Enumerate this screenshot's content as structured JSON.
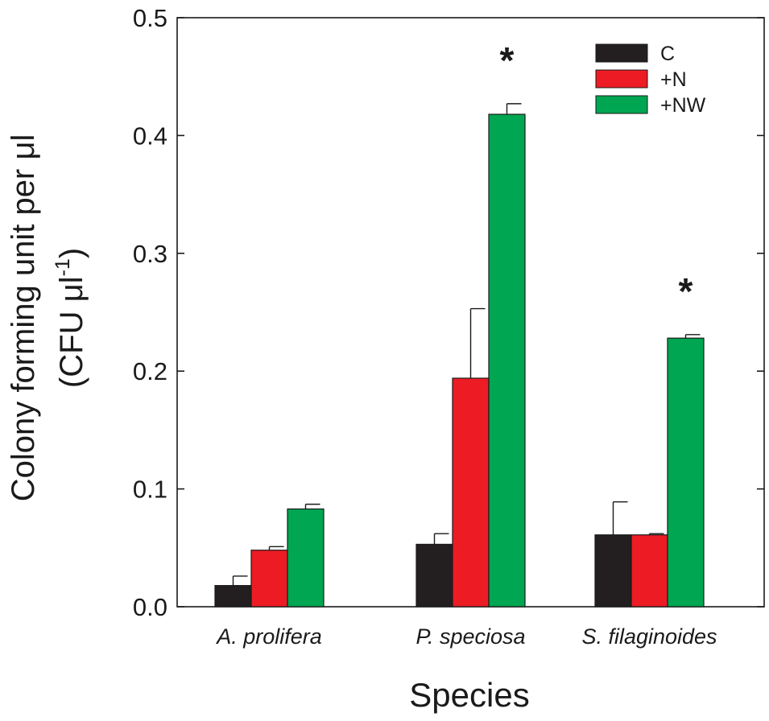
{
  "chart_data": {
    "type": "bar",
    "xlabel": "Species",
    "ylabel_line1": "Colony forming unit per μl",
    "ylabel_line2_prefix": "(CFU μl",
    "ylabel_line2_sup": "-1",
    "ylabel_line2_suffix": ")",
    "ylim": [
      0,
      0.5
    ],
    "yticks": [
      "0.0",
      "0.1",
      "0.2",
      "0.3",
      "0.4",
      "0.5"
    ],
    "ytick_values": [
      0,
      0.1,
      0.2,
      0.3,
      0.4,
      0.5
    ],
    "categories": [
      "A. prolifera",
      "P. speciosa",
      "S. filaginoides"
    ],
    "series": [
      {
        "name": "C",
        "color": "#231f20",
        "values": [
          0.018,
          0.053,
          0.061
        ],
        "errors": [
          0.008,
          0.009,
          0.028
        ]
      },
      {
        "name": "+N",
        "color": "#ed1c24",
        "values": [
          0.048,
          0.194,
          0.061
        ],
        "errors": [
          0.003,
          0.059,
          0.001
        ]
      },
      {
        "name": "+NW",
        "color": "#00a651",
        "values": [
          0.083,
          0.418,
          0.228
        ],
        "errors": [
          0.004,
          0.009,
          0.003
        ]
      }
    ],
    "significance": [
      {
        "category_index": 1,
        "series_index": 2,
        "label": "*"
      },
      {
        "category_index": 2,
        "series_index": 2,
        "label": "*"
      }
    ],
    "legend_position": "top-right"
  }
}
